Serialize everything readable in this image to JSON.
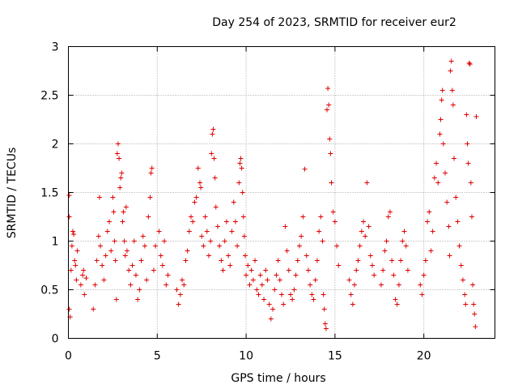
{
  "chart_data": {
    "type": "scatter",
    "title": "Day 254 of 2023, SRMTID for receiver eur2",
    "xlabel": "GPS time / hours",
    "ylabel": "SRMTID / TECUs",
    "xlim": [
      0,
      24
    ],
    "ylim": [
      0,
      3
    ],
    "xticks": [
      0,
      5,
      10,
      15,
      20
    ],
    "xtick_labels": [
      "0",
      "5",
      "10",
      "15",
      "20"
    ],
    "yticks": [
      0,
      0.5,
      1,
      1.5,
      2,
      2.5,
      3
    ],
    "ytick_labels": [
      "0",
      "0.5",
      "1",
      "1.5",
      "2",
      "2.5",
      "3"
    ],
    "grid": true,
    "marker": "+",
    "color": "#e00000",
    "series": [
      {
        "name": "SRMTID",
        "points": [
          [
            0.05,
            1.47
          ],
          [
            0.05,
            1.25
          ],
          [
            0.05,
            0.3
          ],
          [
            0.1,
            0.22
          ],
          [
            0.15,
            0.7
          ],
          [
            0.2,
            0.95
          ],
          [
            0.25,
            1.1
          ],
          [
            0.3,
            1.07
          ],
          [
            0.35,
            0.8
          ],
          [
            0.4,
            0.75
          ],
          [
            0.45,
            0.6
          ],
          [
            0.5,
            0.9
          ],
          [
            0.7,
            0.55
          ],
          [
            0.8,
            0.65
          ],
          [
            0.85,
            0.7
          ],
          [
            0.9,
            0.45
          ],
          [
            1.0,
            0.62
          ],
          [
            1.4,
            0.3
          ],
          [
            1.5,
            0.55
          ],
          [
            1.6,
            0.8
          ],
          [
            1.7,
            1.05
          ],
          [
            1.75,
            1.45
          ],
          [
            1.8,
            0.95
          ],
          [
            1.9,
            0.75
          ],
          [
            2.0,
            0.6
          ],
          [
            2.1,
            0.85
          ],
          [
            2.2,
            1.1
          ],
          [
            2.3,
            1.2
          ],
          [
            2.4,
            0.9
          ],
          [
            2.5,
            1.45
          ],
          [
            2.55,
            1.3
          ],
          [
            2.6,
            1.0
          ],
          [
            2.65,
            0.8
          ],
          [
            2.7,
            0.4
          ],
          [
            2.75,
            1.9
          ],
          [
            2.8,
            2.0
          ],
          [
            2.85,
            1.85
          ],
          [
            2.9,
            1.55
          ],
          [
            2.95,
            1.65
          ],
          [
            3.0,
            1.7
          ],
          [
            3.05,
            1.2
          ],
          [
            3.1,
            1.3
          ],
          [
            3.15,
            1.0
          ],
          [
            3.2,
            0.85
          ],
          [
            3.25,
            1.35
          ],
          [
            3.3,
            0.9
          ],
          [
            3.4,
            0.7
          ],
          [
            3.5,
            0.55
          ],
          [
            3.6,
            0.75
          ],
          [
            3.7,
            1.0
          ],
          [
            3.8,
            0.65
          ],
          [
            3.9,
            0.4
          ],
          [
            4.0,
            0.5
          ],
          [
            4.1,
            0.8
          ],
          [
            4.2,
            1.05
          ],
          [
            4.3,
            0.95
          ],
          [
            4.4,
            0.6
          ],
          [
            4.5,
            1.25
          ],
          [
            4.6,
            1.45
          ],
          [
            4.65,
            1.7
          ],
          [
            4.7,
            1.75
          ],
          [
            4.8,
            0.7
          ],
          [
            4.9,
            0.95
          ],
          [
            5.1,
            1.1
          ],
          [
            5.2,
            0.85
          ],
          [
            5.3,
            0.75
          ],
          [
            5.4,
            1.0
          ],
          [
            5.5,
            0.55
          ],
          [
            5.6,
            0.65
          ],
          [
            6.1,
            0.5
          ],
          [
            6.2,
            0.35
          ],
          [
            6.3,
            0.45
          ],
          [
            6.4,
            0.6
          ],
          [
            6.5,
            0.55
          ],
          [
            6.6,
            0.8
          ],
          [
            6.7,
            0.9
          ],
          [
            6.8,
            1.1
          ],
          [
            6.9,
            1.25
          ],
          [
            7.0,
            1.2
          ],
          [
            7.1,
            1.4
          ],
          [
            7.2,
            1.45
          ],
          [
            7.3,
            1.75
          ],
          [
            7.4,
            1.6
          ],
          [
            7.45,
            1.55
          ],
          [
            7.5,
            1.05
          ],
          [
            7.6,
            0.95
          ],
          [
            7.7,
            1.25
          ],
          [
            7.8,
            1.1
          ],
          [
            7.9,
            0.85
          ],
          [
            8.0,
            1.0
          ],
          [
            8.05,
            1.9
          ],
          [
            8.1,
            2.1
          ],
          [
            8.15,
            2.15
          ],
          [
            8.2,
            1.85
          ],
          [
            8.25,
            1.65
          ],
          [
            8.3,
            1.35
          ],
          [
            8.4,
            1.15
          ],
          [
            8.5,
            0.95
          ],
          [
            8.6,
            0.8
          ],
          [
            8.7,
            0.7
          ],
          [
            8.8,
            1.0
          ],
          [
            8.9,
            1.2
          ],
          [
            9.0,
            0.85
          ],
          [
            9.1,
            0.75
          ],
          [
            9.2,
            1.1
          ],
          [
            9.3,
            1.4
          ],
          [
            9.4,
            1.2
          ],
          [
            9.5,
            0.95
          ],
          [
            9.6,
            1.6
          ],
          [
            9.65,
            1.8
          ],
          [
            9.7,
            1.85
          ],
          [
            9.75,
            1.75
          ],
          [
            9.8,
            1.5
          ],
          [
            9.85,
            1.25
          ],
          [
            9.9,
            1.05
          ],
          [
            9.95,
            0.85
          ],
          [
            10.0,
            0.65
          ],
          [
            10.1,
            0.75
          ],
          [
            10.2,
            0.55
          ],
          [
            10.3,
            0.7
          ],
          [
            10.4,
            0.6
          ],
          [
            10.5,
            0.8
          ],
          [
            10.6,
            0.5
          ],
          [
            10.7,
            0.45
          ],
          [
            10.8,
            0.65
          ],
          [
            10.9,
            0.55
          ],
          [
            11.0,
            0.4
          ],
          [
            11.1,
            0.7
          ],
          [
            11.2,
            0.6
          ],
          [
            11.3,
            0.35
          ],
          [
            11.4,
            0.2
          ],
          [
            11.5,
            0.3
          ],
          [
            11.6,
            0.5
          ],
          [
            11.7,
            0.65
          ],
          [
            11.8,
            0.8
          ],
          [
            11.9,
            0.6
          ],
          [
            12.0,
            0.45
          ],
          [
            12.1,
            0.35
          ],
          [
            12.2,
            1.15
          ],
          [
            12.3,
            0.9
          ],
          [
            12.4,
            0.7
          ],
          [
            12.5,
            0.45
          ],
          [
            12.6,
            0.4
          ],
          [
            12.7,
            0.5
          ],
          [
            12.8,
            0.65
          ],
          [
            12.9,
            0.8
          ],
          [
            13.0,
            0.95
          ],
          [
            13.1,
            1.05
          ],
          [
            13.2,
            1.25
          ],
          [
            13.3,
            1.74
          ],
          [
            13.4,
            0.85
          ],
          [
            13.5,
            0.7
          ],
          [
            13.6,
            0.55
          ],
          [
            13.7,
            0.45
          ],
          [
            13.8,
            0.4
          ],
          [
            13.9,
            0.6
          ],
          [
            14.0,
            0.8
          ],
          [
            14.1,
            1.1
          ],
          [
            14.2,
            1.25
          ],
          [
            14.3,
            1.0
          ],
          [
            14.35,
            0.45
          ],
          [
            14.4,
            0.3
          ],
          [
            14.45,
            0.15
          ],
          [
            14.5,
            0.1
          ],
          [
            14.55,
            2.35
          ],
          [
            14.6,
            2.57
          ],
          [
            14.65,
            2.4
          ],
          [
            14.7,
            2.05
          ],
          [
            14.75,
            1.9
          ],
          [
            14.8,
            1.6
          ],
          [
            14.9,
            1.3
          ],
          [
            15.0,
            1.2
          ],
          [
            15.1,
            0.95
          ],
          [
            15.2,
            0.75
          ],
          [
            15.8,
            0.6
          ],
          [
            15.9,
            0.45
          ],
          [
            16.0,
            0.35
          ],
          [
            16.1,
            0.55
          ],
          [
            16.2,
            0.7
          ],
          [
            16.3,
            0.8
          ],
          [
            16.4,
            0.95
          ],
          [
            16.5,
            1.1
          ],
          [
            16.6,
            1.2
          ],
          [
            16.7,
            1.05
          ],
          [
            16.8,
            1.6
          ],
          [
            16.9,
            1.15
          ],
          [
            17.0,
            0.85
          ],
          [
            17.1,
            0.75
          ],
          [
            17.2,
            0.65
          ],
          [
            17.6,
            0.55
          ],
          [
            17.7,
            0.7
          ],
          [
            17.8,
            0.9
          ],
          [
            17.9,
            1.0
          ],
          [
            18.0,
            1.25
          ],
          [
            18.1,
            1.3
          ],
          [
            18.2,
            0.8
          ],
          [
            18.3,
            0.65
          ],
          [
            18.4,
            0.4
          ],
          [
            18.5,
            0.35
          ],
          [
            18.6,
            0.55
          ],
          [
            18.7,
            0.8
          ],
          [
            18.8,
            1.0
          ],
          [
            18.9,
            1.1
          ],
          [
            19.0,
            0.95
          ],
          [
            19.1,
            0.7
          ],
          [
            19.8,
            0.55
          ],
          [
            19.9,
            0.45
          ],
          [
            20.0,
            0.65
          ],
          [
            20.1,
            0.8
          ],
          [
            20.2,
            1.2
          ],
          [
            20.3,
            1.3
          ],
          [
            20.4,
            0.9
          ],
          [
            20.5,
            1.1
          ],
          [
            20.6,
            1.65
          ],
          [
            20.7,
            1.8
          ],
          [
            20.8,
            1.6
          ],
          [
            20.9,
            2.1
          ],
          [
            20.95,
            2.25
          ],
          [
            21.0,
            2.45
          ],
          [
            21.05,
            2.55
          ],
          [
            21.1,
            2.0
          ],
          [
            21.2,
            1.7
          ],
          [
            21.3,
            1.4
          ],
          [
            21.4,
            1.15
          ],
          [
            21.45,
            0.85
          ],
          [
            21.5,
            2.75
          ],
          [
            21.55,
            2.85
          ],
          [
            21.6,
            2.55
          ],
          [
            21.65,
            2.4
          ],
          [
            21.7,
            1.85
          ],
          [
            21.8,
            1.45
          ],
          [
            21.9,
            1.2
          ],
          [
            22.0,
            0.95
          ],
          [
            22.1,
            0.75
          ],
          [
            22.2,
            0.6
          ],
          [
            22.3,
            0.45
          ],
          [
            22.35,
            0.35
          ],
          [
            22.4,
            2.3
          ],
          [
            22.45,
            2.0
          ],
          [
            22.5,
            1.8
          ],
          [
            22.55,
            2.83
          ],
          [
            22.6,
            2.82
          ],
          [
            22.65,
            1.6
          ],
          [
            22.7,
            1.25
          ],
          [
            22.75,
            0.55
          ],
          [
            22.8,
            0.35
          ],
          [
            22.85,
            0.25
          ],
          [
            22.9,
            0.12
          ],
          [
            22.95,
            2.28
          ]
        ]
      }
    ]
  }
}
